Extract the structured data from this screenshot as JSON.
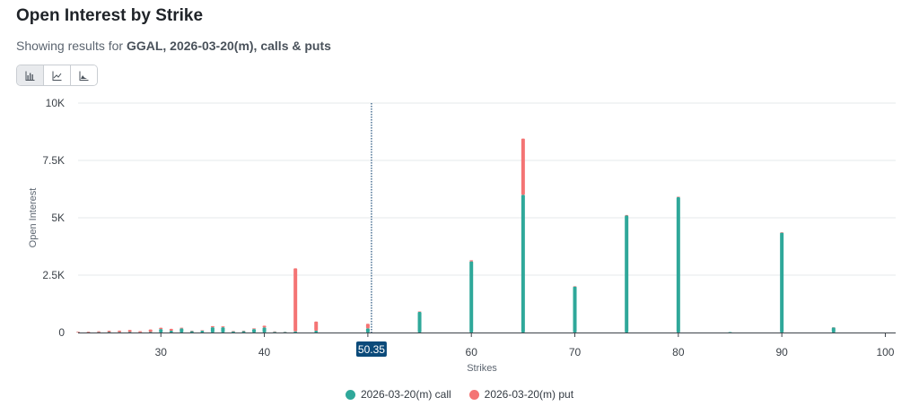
{
  "header": {
    "title": "Open Interest by Strike",
    "subtitle_prefix": "Showing results for ",
    "subtitle_bold": "GGAL, 2026-03-20(m), calls & puts"
  },
  "toolbar": {
    "buttons": [
      {
        "icon": "bar-chart-icon",
        "active": true
      },
      {
        "icon": "line-chart-icon",
        "active": false
      },
      {
        "icon": "area-chart-icon",
        "active": false
      }
    ]
  },
  "chart_data": {
    "type": "bar",
    "stacked": true,
    "xlabel": "Strikes",
    "ylabel": "Open Interest",
    "xlim": [
      22,
      101
    ],
    "ylim": [
      0,
      10000
    ],
    "x_ticks": [
      30,
      40,
      50,
      60,
      70,
      80,
      90,
      100
    ],
    "y_ticks": [
      0,
      2500,
      5000,
      7500,
      10000
    ],
    "y_tick_labels": [
      "0",
      "2.5K",
      "5K",
      "7.5K",
      "10K"
    ],
    "current_price": 50.35,
    "current_price_label": "50.35",
    "colors": {
      "call": "#2fa89a",
      "put": "#f47474",
      "price_line": "#1e4e79",
      "price_badge": "#0b4a7a"
    },
    "series": [
      {
        "name": "2026-03-20(m) call",
        "points": [
          {
            "x": 22,
            "y": 10
          },
          {
            "x": 23,
            "y": 10
          },
          {
            "x": 24,
            "y": 15
          },
          {
            "x": 25,
            "y": 20
          },
          {
            "x": 26,
            "y": 15
          },
          {
            "x": 27,
            "y": 20
          },
          {
            "x": 28,
            "y": 10
          },
          {
            "x": 29,
            "y": 20
          },
          {
            "x": 30,
            "y": 150
          },
          {
            "x": 31,
            "y": 80
          },
          {
            "x": 32,
            "y": 180
          },
          {
            "x": 33,
            "y": 60
          },
          {
            "x": 34,
            "y": 80
          },
          {
            "x": 35,
            "y": 230
          },
          {
            "x": 36,
            "y": 230
          },
          {
            "x": 37,
            "y": 50
          },
          {
            "x": 38,
            "y": 60
          },
          {
            "x": 39,
            "y": 150
          },
          {
            "x": 40,
            "y": 220
          },
          {
            "x": 41,
            "y": 30
          },
          {
            "x": 42,
            "y": 20
          },
          {
            "x": 43,
            "y": 50
          },
          {
            "x": 45,
            "y": 80
          },
          {
            "x": 50,
            "y": 180
          },
          {
            "x": 55,
            "y": 900
          },
          {
            "x": 60,
            "y": 3100
          },
          {
            "x": 65,
            "y": 6000
          },
          {
            "x": 70,
            "y": 2000
          },
          {
            "x": 75,
            "y": 5100
          },
          {
            "x": 80,
            "y": 5900
          },
          {
            "x": 85,
            "y": 20
          },
          {
            "x": 90,
            "y": 4350
          },
          {
            "x": 95,
            "y": 220
          }
        ]
      },
      {
        "name": "2026-03-20(m) put",
        "points": [
          {
            "x": 22,
            "y": 30
          },
          {
            "x": 23,
            "y": 30
          },
          {
            "x": 24,
            "y": 40
          },
          {
            "x": 25,
            "y": 60
          },
          {
            "x": 26,
            "y": 70
          },
          {
            "x": 27,
            "y": 90
          },
          {
            "x": 28,
            "y": 50
          },
          {
            "x": 29,
            "y": 110
          },
          {
            "x": 30,
            "y": 60
          },
          {
            "x": 31,
            "y": 80
          },
          {
            "x": 32,
            "y": 30
          },
          {
            "x": 33,
            "y": 20
          },
          {
            "x": 34,
            "y": 20
          },
          {
            "x": 35,
            "y": 50
          },
          {
            "x": 36,
            "y": 40
          },
          {
            "x": 37,
            "y": 20
          },
          {
            "x": 38,
            "y": 20
          },
          {
            "x": 39,
            "y": 30
          },
          {
            "x": 40,
            "y": 80
          },
          {
            "x": 41,
            "y": 20
          },
          {
            "x": 42,
            "y": 10
          },
          {
            "x": 43,
            "y": 2750
          },
          {
            "x": 45,
            "y": 400
          },
          {
            "x": 50,
            "y": 200
          },
          {
            "x": 55,
            "y": 20
          },
          {
            "x": 60,
            "y": 50
          },
          {
            "x": 65,
            "y": 2450
          },
          {
            "x": 70,
            "y": 20
          },
          {
            "x": 75,
            "y": 20
          },
          {
            "x": 80,
            "y": 20
          },
          {
            "x": 85,
            "y": 0
          },
          {
            "x": 90,
            "y": 20
          },
          {
            "x": 95,
            "y": 10
          }
        ]
      }
    ],
    "legend_position": "bottom-center"
  }
}
